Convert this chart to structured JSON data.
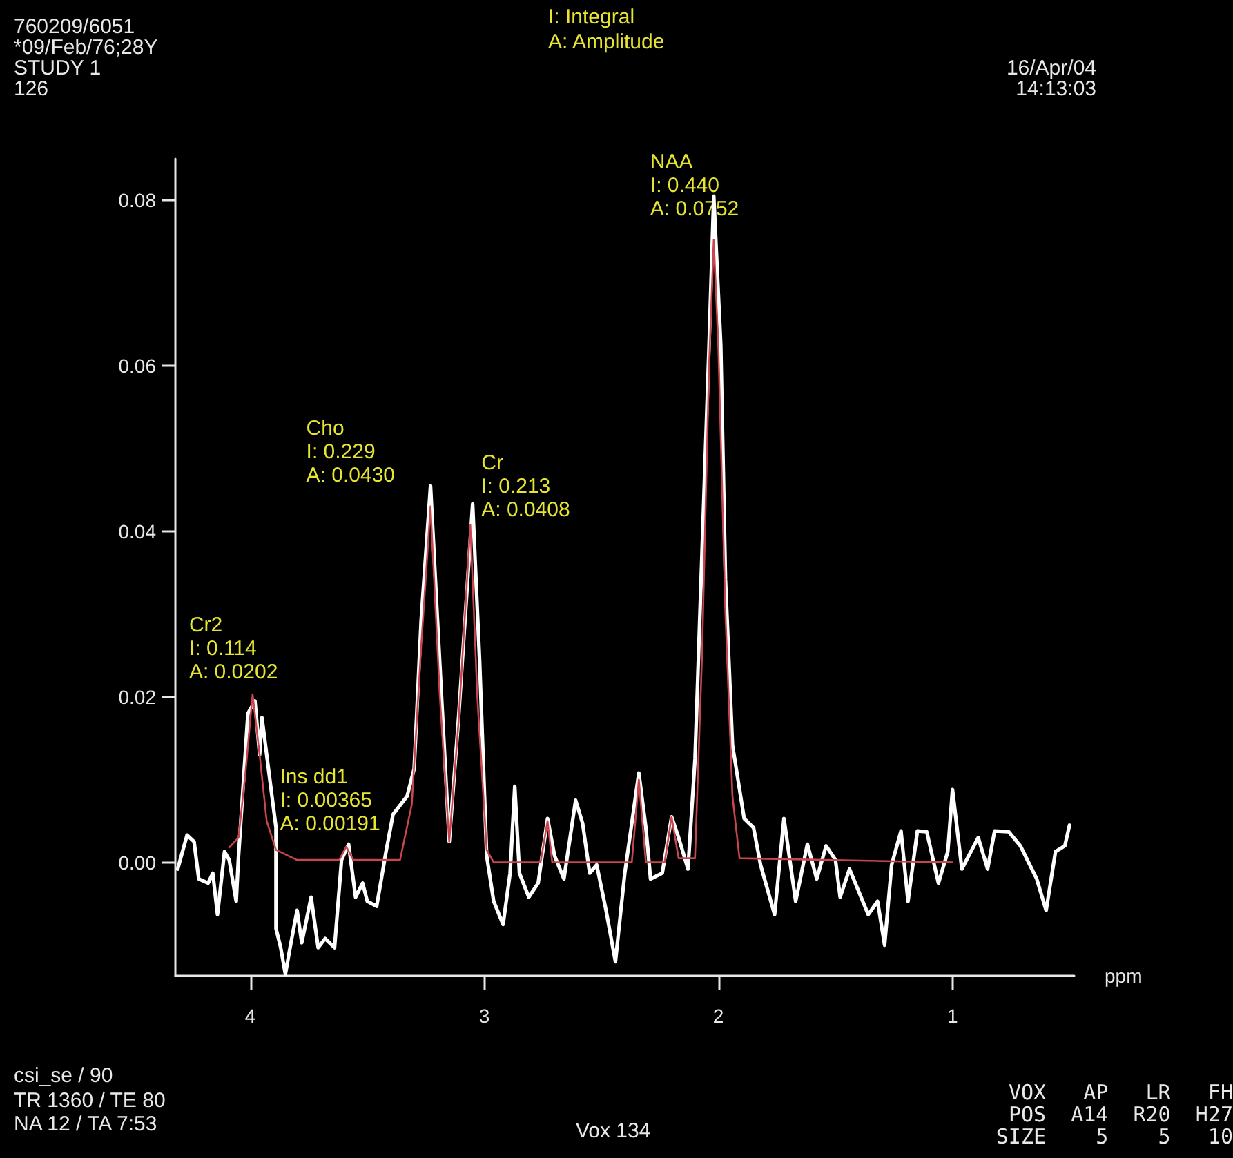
{
  "chart_data": {
    "type": "line",
    "xlabel": "ppm",
    "xlim": [
      4.32,
      0.48
    ],
    "xticks": [
      4,
      3,
      2,
      1
    ],
    "ylim": [
      -0.0137,
      0.085
    ],
    "yticks": [
      {
        "value": 0,
        "label": "0.00"
      },
      {
        "value": 0.02,
        "label": "0.02"
      },
      {
        "value": 0.04,
        "label": "0.04"
      },
      {
        "value": 0.06,
        "label": "0.06"
      },
      {
        "value": 0.08,
        "label": "0.08"
      }
    ],
    "grid": false,
    "marker": "none",
    "line_style": "solid",
    "series": [
      {
        "color": "#ffffff",
        "x": [
          4.31,
          4.27,
          4.24,
          4.22,
          4.18,
          4.16,
          4.14,
          4.11,
          4.09,
          4.06,
          4.05,
          4.01,
          3.98,
          3.96,
          3.95,
          3.92,
          3.89,
          3.89,
          3.87,
          3.85,
          3.83,
          3.8,
          3.78,
          3.74,
          3.71,
          3.68,
          3.64,
          3.61,
          3.58,
          3.55,
          3.52,
          3.5,
          3.46,
          3.42,
          3.39,
          3.33,
          3.3,
          3.27,
          3.23,
          3.2,
          3.15,
          3.11,
          3.05,
          3.02,
          2.99,
          2.96,
          2.92,
          2.89,
          2.87,
          2.85,
          2.81,
          2.77,
          2.73,
          2.7,
          2.66,
          2.61,
          2.58,
          2.55,
          2.52,
          2.48,
          2.44,
          2.4,
          2.34,
          2.31,
          2.29,
          2.24,
          2.2,
          2.17,
          2.13,
          2.1,
          2.07,
          2.04,
          2.02,
          1.99,
          1.97,
          1.94,
          1.89,
          1.85,
          1.82,
          1.76,
          1.72,
          1.67,
          1.62,
          1.58,
          1.54,
          1.5,
          1.48,
          1.44,
          1.36,
          1.32,
          1.29,
          1.26,
          1.22,
          1.19,
          1.15,
          1.11,
          1.06,
          1.02,
          1.0,
          0.96,
          0.89,
          0.85,
          0.82,
          0.76,
          0.71,
          0.64,
          0.6,
          0.56,
          0.52,
          0.5
        ],
        "values": [
          -0.0008,
          0.0033,
          0.0025,
          -0.002,
          -0.0025,
          -0.0013,
          -0.0063,
          0.0013,
          0.0003,
          -0.0047,
          0.0008,
          0.018,
          0.0195,
          0.013,
          0.0175,
          0.0108,
          0.0042,
          -0.008,
          -0.0103,
          -0.0135,
          -0.0103,
          -0.0058,
          -0.0097,
          -0.0042,
          -0.0103,
          -0.0092,
          -0.0103,
          0.0003,
          0.0022,
          -0.0042,
          -0.0025,
          -0.0047,
          -0.0053,
          0.0013,
          0.0058,
          0.008,
          0.0113,
          0.0292,
          0.0455,
          0.0292,
          0.0025,
          0.0175,
          0.0433,
          0.0242,
          0.0008,
          -0.0047,
          -0.0075,
          -0.0013,
          0.0092,
          -0.0013,
          -0.0042,
          -0.0025,
          0.0053,
          0.0008,
          -0.002,
          0.0075,
          0.0047,
          -0.0013,
          -0.0003,
          -0.0058,
          -0.012,
          -0.0013,
          0.0108,
          0.0042,
          -0.002,
          -0.0013,
          0.0055,
          0.003,
          -0.0008,
          0.0125,
          0.0375,
          0.0625,
          0.0805,
          0.0625,
          0.0342,
          0.0142,
          0.0053,
          0.0042,
          -0.0003,
          -0.0063,
          0.0053,
          -0.0047,
          0.0022,
          -0.002,
          0.002,
          0.0003,
          -0.0042,
          -0.0008,
          -0.0063,
          -0.0047,
          -0.01,
          -0.0003,
          0.0038,
          -0.0047,
          0.0038,
          0.0037,
          -0.0025,
          0.0013,
          0.0088,
          -0.0008,
          0.003,
          -0.0008,
          0.0038,
          0.0037,
          0.002,
          -0.002,
          -0.0058,
          0.0013,
          0.002,
          0.0045
        ]
      },
      {
        "color": "#c8464e",
        "x": [
          4.09,
          4.05,
          4.02,
          3.99,
          3.96,
          3.93,
          3.89,
          3.8,
          3.62,
          3.59,
          3.56,
          3.36,
          3.31,
          3.27,
          3.23,
          3.19,
          3.15,
          3.11,
          3.06,
          3.03,
          2.99,
          2.96,
          2.76,
          2.73,
          2.71,
          2.37,
          2.34,
          2.31,
          2.23,
          2.2,
          2.17,
          2.1,
          2.07,
          2.04,
          2.02,
          2.0,
          1.97,
          1.94,
          1.91,
          1.0
        ],
        "values": [
          0.0018,
          0.003,
          0.011,
          0.0203,
          0.013,
          0.005,
          0.0015,
          0.0003,
          0.0003,
          0.0019,
          0.0003,
          0.0003,
          0.007,
          0.026,
          0.043,
          0.02,
          0.0025,
          0.017,
          0.0408,
          0.02,
          0.0015,
          0.0,
          0.0,
          0.005,
          0.0,
          0.0,
          0.01,
          0.0,
          0.0,
          0.0055,
          0.0005,
          0.0005,
          0.025,
          0.06,
          0.0752,
          0.062,
          0.03,
          0.008,
          0.0005,
          0.0
        ]
      }
    ],
    "annotations": [
      "760209/6051",
      "*09/Feb/76;28Y",
      "STUDY 1",
      "126",
      "I: Integral",
      "A: Amplitude",
      "16/Apr/04",
      "14:13:03",
      "csi_se / 90",
      "TR 1360 / TE 80",
      "NA 12 / TA 7:53",
      "Vox 134",
      "VOX   AP   LR   FH",
      "POS  A14  R20  H27",
      "SIZE    5    5   10",
      {
        "text": "NAA\nI: 0.440\nA: 0.0752",
        "x": 2.02,
        "y": 0.0752
      },
      {
        "text": "Cho\nI: 0.229\nA: 0.0430",
        "x": 3.23,
        "y": 0.043
      },
      {
        "text": "Cr\nI: 0.213\nA: 0.0408",
        "x": 3.06,
        "y": 0.0408
      },
      {
        "text": "Cr2\nI: 0.114\nA: 0.0202",
        "x": 3.99,
        "y": 0.0202
      },
      {
        "text": "Ins dd1\nI: 0.00365\nA: 0.00191",
        "x": 3.59,
        "y": 0.0019
      }
    ]
  }
}
